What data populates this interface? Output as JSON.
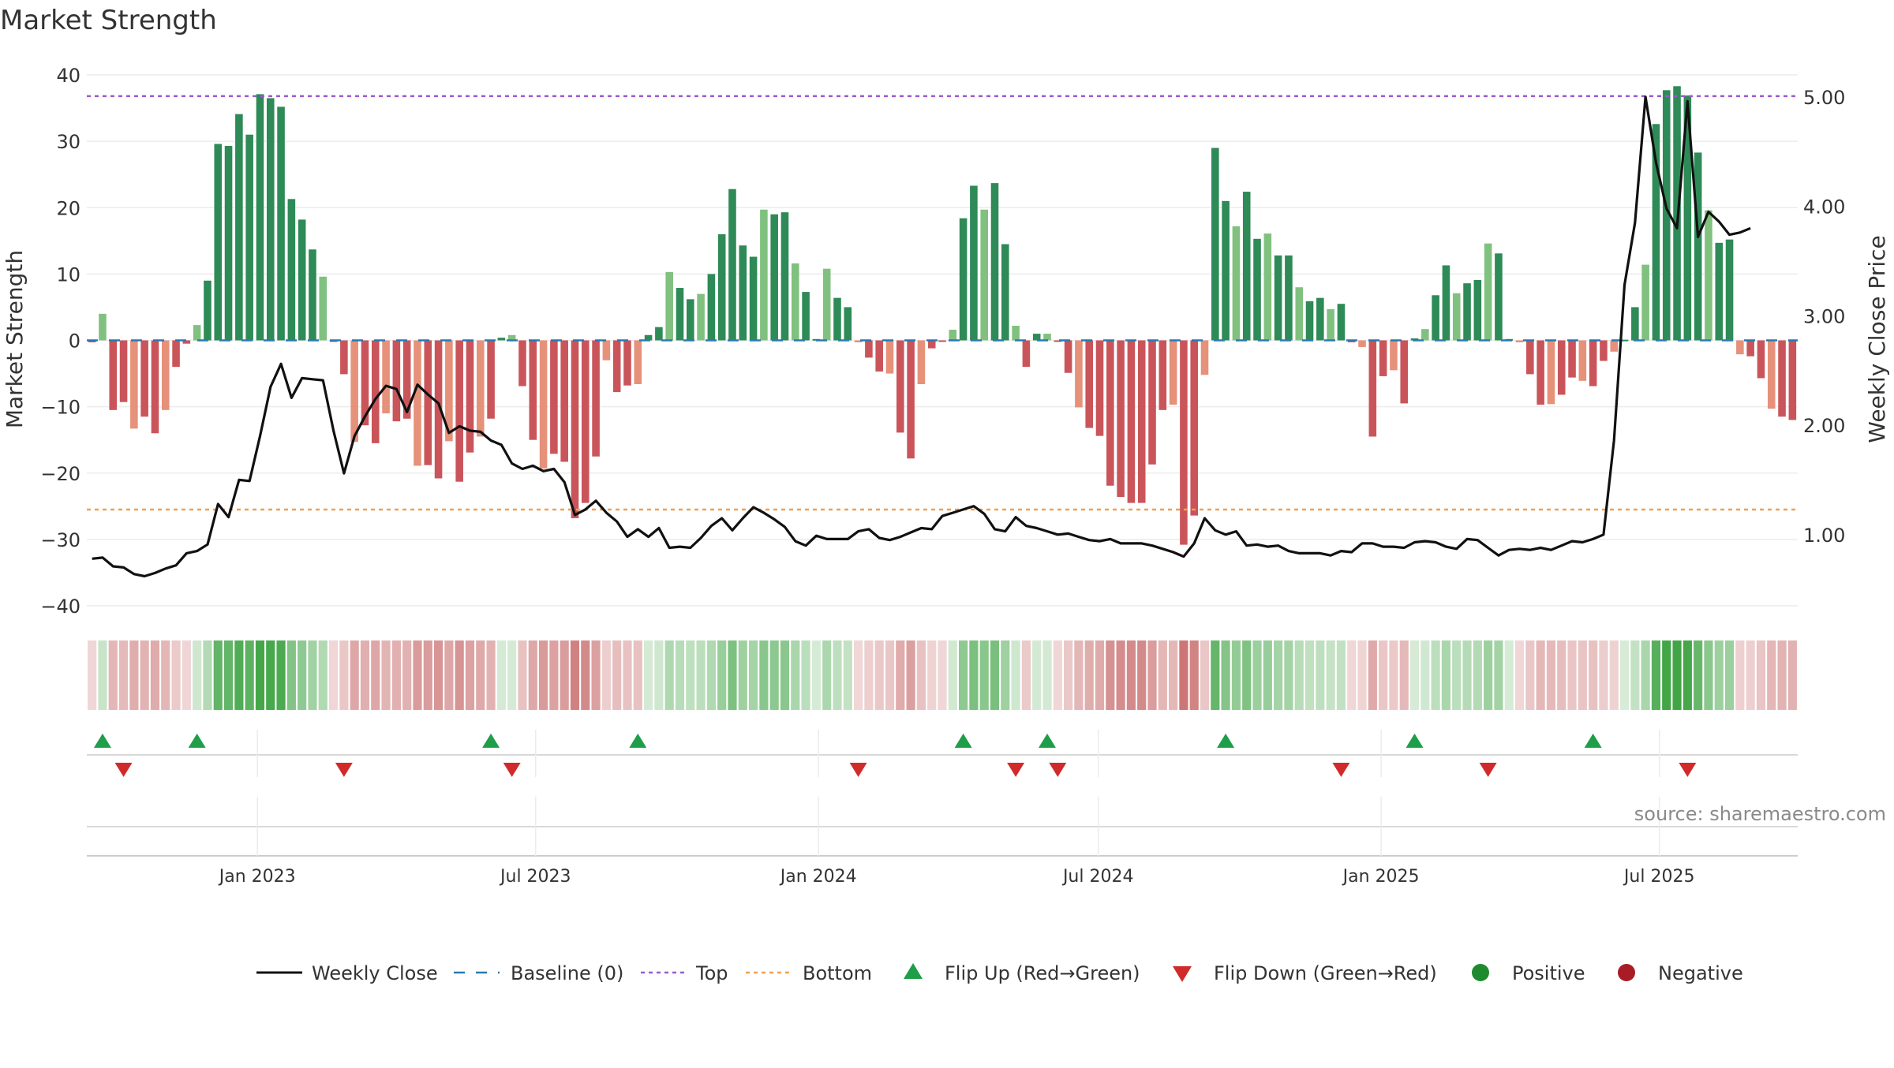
{
  "chart_data": {
    "type": "bar",
    "title": "Market Strength",
    "ylabel_left": "Market Strength",
    "ylabel_right": "Weekly Close Price",
    "ylim_left": [
      -40,
      40
    ],
    "yticks_left": [
      "40",
      "30",
      "20",
      "10",
      "0",
      "−10",
      "−20",
      "−30",
      "−40"
    ],
    "yticks_left_values": [
      40,
      30,
      20,
      10,
      0,
      -10,
      -20,
      -30,
      -40
    ],
    "ylim_right": [
      0.35,
      5.2
    ],
    "yticks_right": [
      "5.00",
      "4.00",
      "3.00",
      "2.00",
      "1.00"
    ],
    "yticks_right_values": [
      5.0,
      4.0,
      3.0,
      2.0,
      1.0
    ],
    "x_start": "2022-09-12",
    "x_end": "2025-09-29",
    "x_tick_labels": [
      "Jan 2023",
      "Jul 2023",
      "Jan 2024",
      "Jul 2024",
      "Jan 2025",
      "Jul 2025"
    ],
    "x_tick_dates": [
      "2023-01-01",
      "2023-07-01",
      "2024-01-01",
      "2024-07-01",
      "2025-01-01",
      "2025-07-01"
    ],
    "top_line": 36.8,
    "bottom_line": -25.5,
    "strength": [
      -0.3,
      4.0,
      -10.5,
      -9.3,
      -13.3,
      -11.5,
      -14.0,
      -10.5,
      -4.0,
      -0.5,
      2.3,
      9.0,
      29.6,
      29.3,
      34.1,
      31.0,
      37.1,
      36.5,
      35.2,
      21.3,
      18.2,
      13.7,
      9.6,
      -0.2,
      -5.1,
      -15.3,
      -12.8,
      -15.5,
      -11.0,
      -12.2,
      -11.8,
      -18.9,
      -18.8,
      -20.8,
      -15.2,
      -21.3,
      -16.9,
      -14.5,
      -11.8,
      0.4,
      0.8,
      -6.9,
      -15.0,
      -19.3,
      -17.1,
      -18.3,
      -26.8,
      -24.5,
      -17.5,
      -3.0,
      -7.8,
      -6.8,
      -6.6,
      0.8,
      2.0,
      10.3,
      7.9,
      6.2,
      7.0,
      10.0,
      16.0,
      22.8,
      14.3,
      12.6,
      19.7,
      19.0,
      19.3,
      11.6,
      7.3,
      0.2,
      10.8,
      6.4,
      5.0,
      -0.3,
      -2.6,
      -4.7,
      -5.0,
      -13.9,
      -17.8,
      -6.6,
      -1.2,
      -0.2,
      1.6,
      18.4,
      23.3,
      19.7,
      23.7,
      14.5,
      2.2,
      -4.0,
      1.0,
      1.0,
      -0.2,
      -4.9,
      -10.1,
      -13.2,
      -14.4,
      -21.9,
      -23.6,
      -24.5,
      -24.5,
      -18.7,
      -10.5,
      -9.7,
      -30.8,
      -26.4,
      -5.2,
      29.0,
      21.0,
      17.2,
      22.4,
      15.3,
      16.1,
      12.8,
      12.8,
      8.0,
      5.9,
      6.4,
      4.7,
      5.5,
      -0.3,
      -1.0,
      -14.5,
      -5.4,
      -4.5,
      -9.5,
      0.3,
      1.7,
      6.8,
      11.3,
      7.1,
      8.6,
      9.1,
      14.6,
      13.1,
      0.2,
      -0.3,
      -5.1,
      -9.7,
      -9.6,
      -8.2,
      -5.6,
      -6.1,
      -6.9,
      -3.1,
      -1.7,
      0.1,
      5.0,
      11.4,
      32.6,
      37.7,
      38.3,
      36.9,
      28.3,
      19.6,
      14.7,
      15.2,
      -2.1,
      -2.4,
      -5.7,
      -10.3,
      -11.5,
      -12.0
    ],
    "close": [
      0.78,
      0.79,
      0.71,
      0.7,
      0.64,
      0.62,
      0.65,
      0.69,
      0.72,
      0.83,
      0.85,
      0.91,
      1.28,
      1.16,
      1.5,
      1.49,
      1.9,
      2.35,
      2.56,
      2.25,
      2.43,
      2.42,
      2.41,
      1.95,
      1.56,
      1.9,
      2.08,
      2.24,
      2.36,
      2.33,
      2.12,
      2.37,
      2.28,
      2.2,
      1.93,
      1.99,
      1.95,
      1.94,
      1.86,
      1.82,
      1.65,
      1.6,
      1.63,
      1.58,
      1.6,
      1.48,
      1.18,
      1.23,
      1.31,
      1.2,
      1.12,
      0.98,
      1.05,
      0.98,
      1.06,
      0.88,
      0.89,
      0.88,
      0.97,
      1.08,
      1.15,
      1.04,
      1.15,
      1.25,
      1.2,
      1.14,
      1.07,
      0.94,
      0.9,
      0.99,
      0.96,
      0.96,
      0.96,
      1.03,
      1.05,
      0.97,
      0.95,
      0.98,
      1.02,
      1.06,
      1.05,
      1.17,
      1.2,
      1.23,
      1.26,
      1.19,
      1.05,
      1.03,
      1.16,
      1.08,
      1.06,
      1.03,
      1.0,
      1.01,
      0.98,
      0.95,
      0.94,
      0.96,
      0.92,
      0.92,
      0.92,
      0.9,
      0.87,
      0.84,
      0.8,
      0.92,
      1.15,
      1.04,
      1.0,
      1.03,
      0.9,
      0.91,
      0.89,
      0.9,
      0.85,
      0.83,
      0.83,
      0.83,
      0.81,
      0.85,
      0.84,
      0.92,
      0.92,
      0.89,
      0.89,
      0.88,
      0.93,
      0.94,
      0.93,
      0.89,
      0.87,
      0.96,
      0.95,
      0.88,
      0.81,
      0.86,
      0.87,
      0.86,
      0.88,
      0.86,
      0.9,
      0.94,
      0.93,
      0.96,
      1.0,
      1.86,
      3.28,
      3.85,
      5.0,
      4.4,
      3.98,
      3.8,
      4.96,
      3.72,
      3.95,
      3.86,
      3.74,
      3.76,
      3.8
    ],
    "flip_up_labels": [
      "Flip Up (Red→Green)"
    ],
    "flip_up_index": [
      1,
      10,
      38,
      52,
      83,
      91,
      108,
      126,
      143
    ],
    "flip_down_index": [
      3,
      24,
      40,
      73,
      88,
      92,
      119,
      133,
      152
    ],
    "legend": {
      "weekly_close": "Weekly Close",
      "baseline": "Baseline (0)",
      "top": "Top",
      "bottom": "Bottom",
      "flip_up": "Flip Up (Red→Green)",
      "flip_down": "Flip Down (Green→Red)",
      "positive": "Positive",
      "negative": "Negative"
    },
    "source": "source: sharemaestro.com",
    "colors": {
      "pos_dark": "#2e8a57",
      "pos_light": "#80c17f",
      "neg_dark": "#c9555b",
      "neg_light": "#e6917a",
      "baseline": "#2a7ab0",
      "top": "#9b59d0",
      "bottom": "#f0a050",
      "flip_up": "#1e9e49",
      "flip_down": "#d12a2a",
      "positive_dot": "#1e8a2e",
      "negative_dot": "#a91c25"
    }
  }
}
